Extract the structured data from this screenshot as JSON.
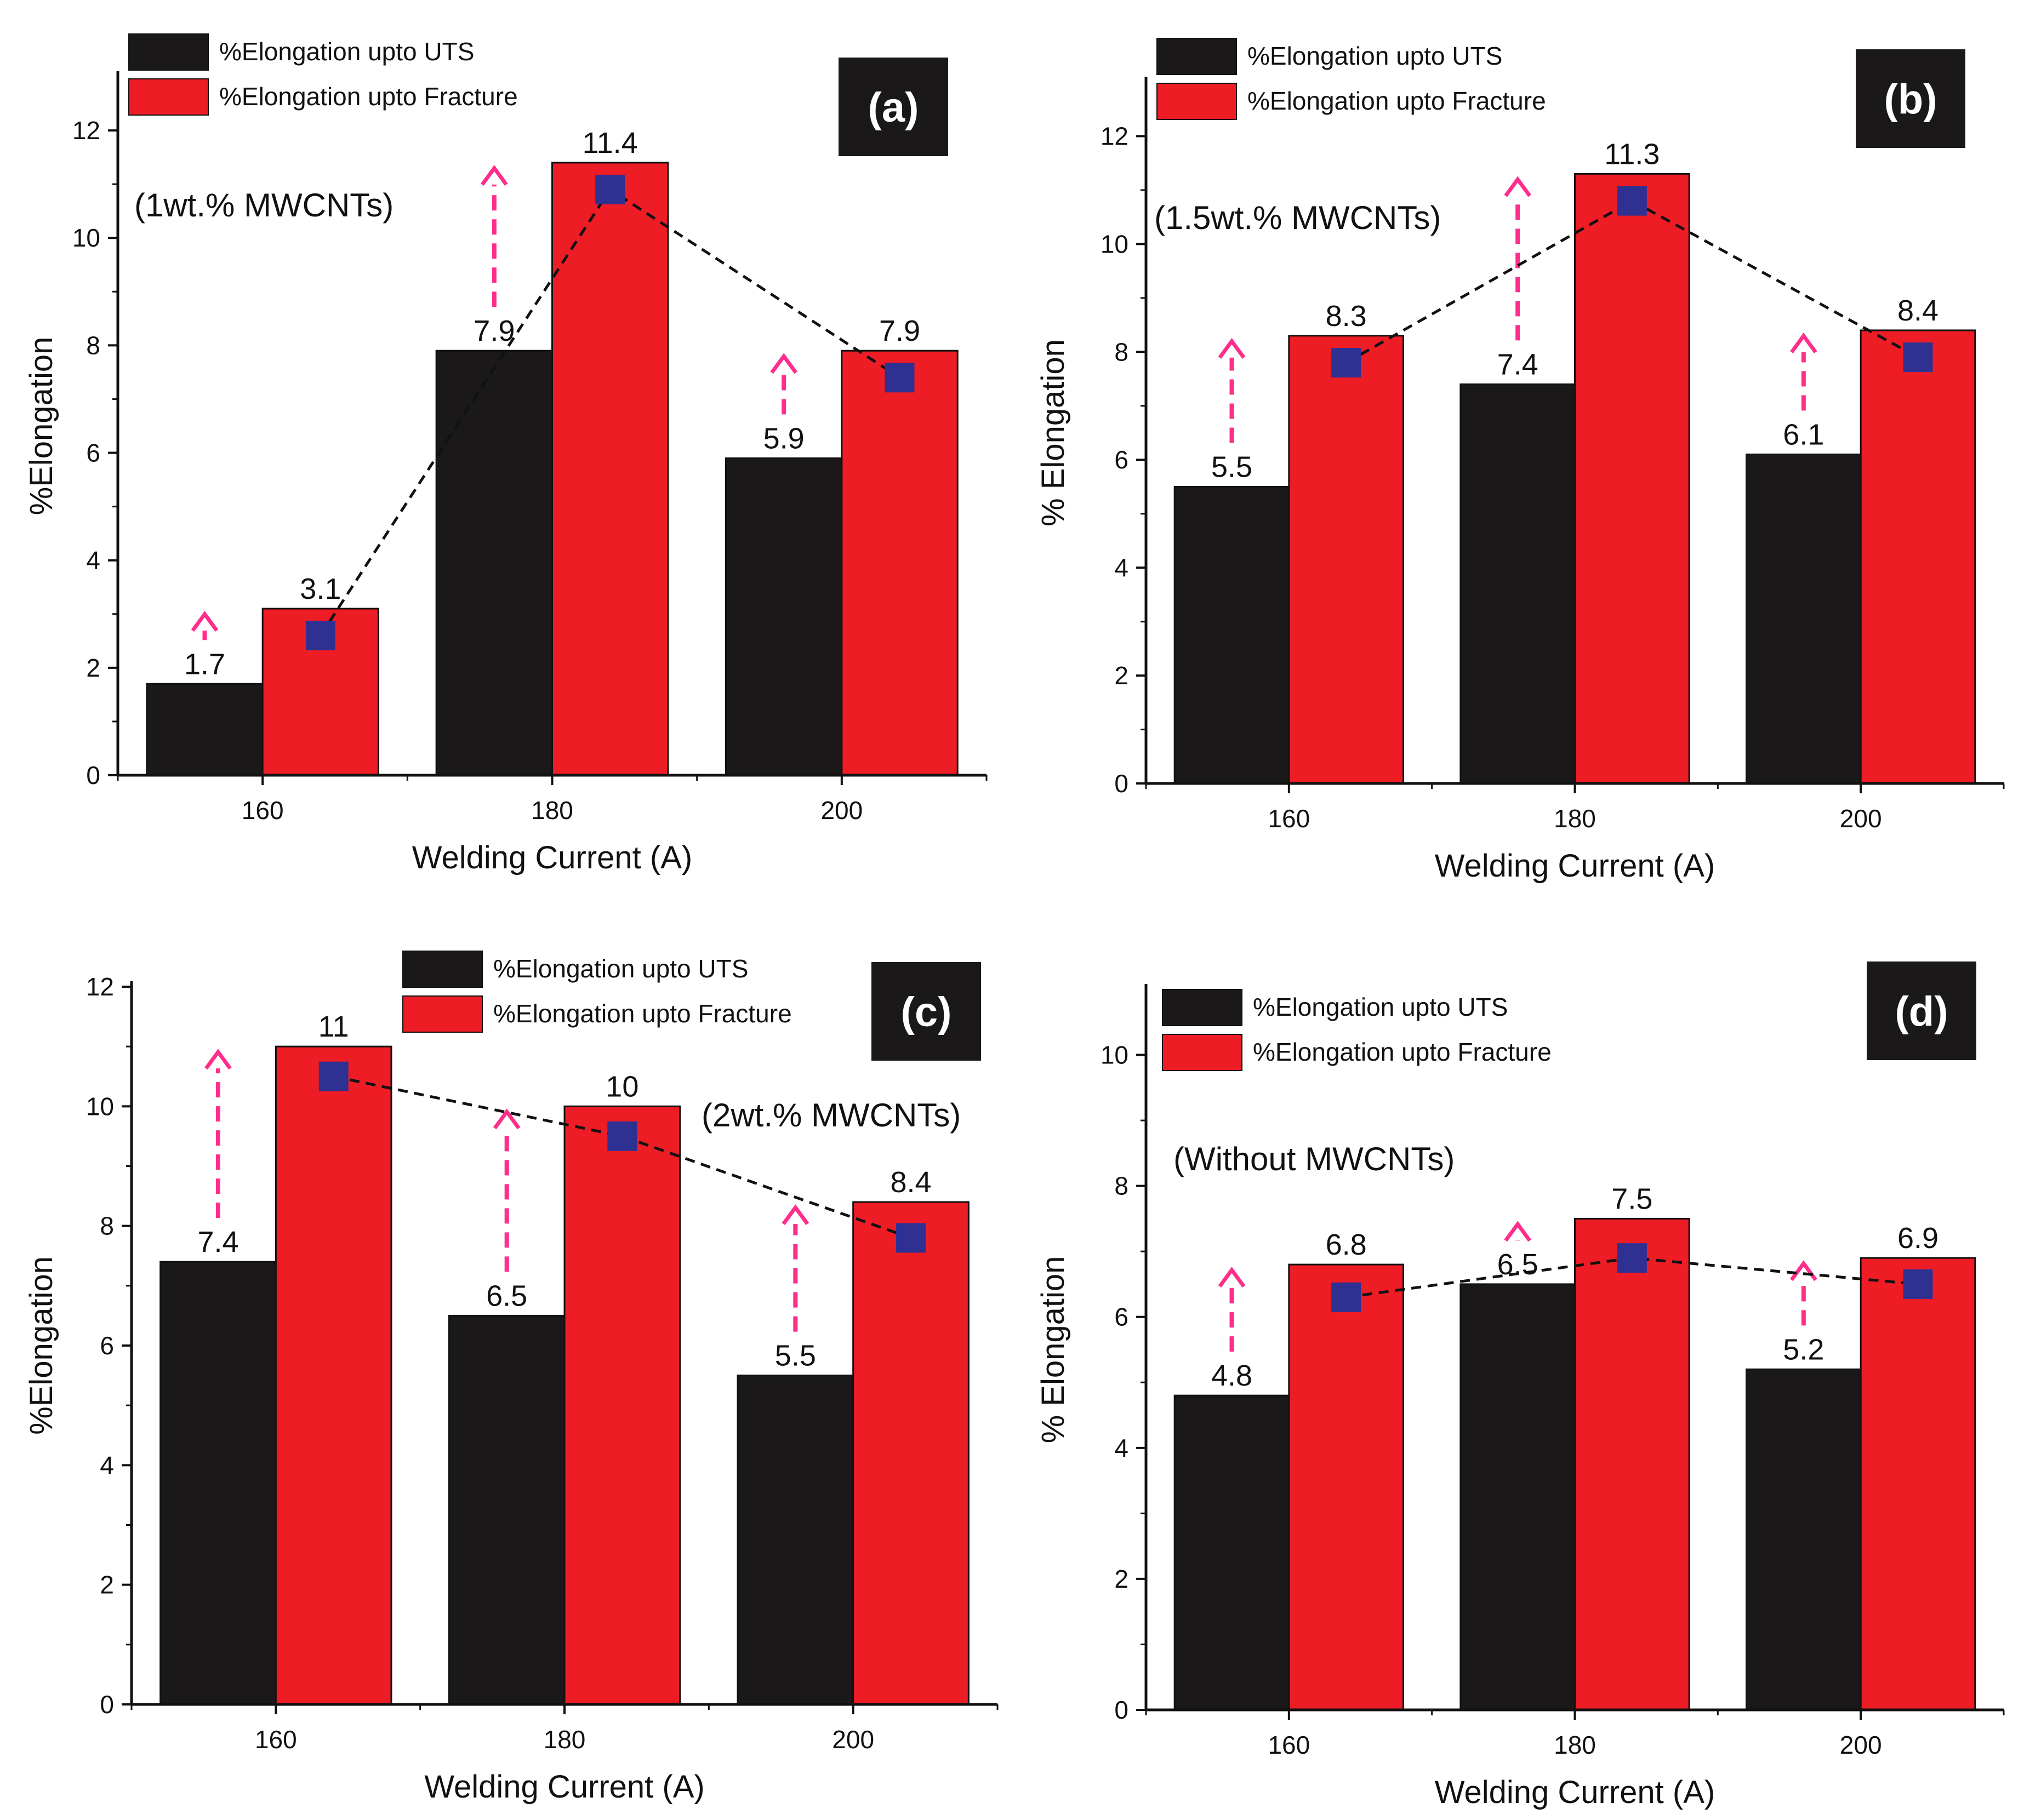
{
  "legend": {
    "uts_label": "%Elongation upto UTS",
    "fracture_label": "%Elongation upto Fracture"
  },
  "colors": {
    "uts_bar": "#1a1818",
    "fracture_bar": "#ee1c25",
    "marker": "#2e3192",
    "arrow": "#ff2e8a",
    "axis": "#111111"
  },
  "chart_data": [
    {
      "type": "bar",
      "panel_label": "(a)",
      "annotation": "(1wt.% MWCNTs)",
      "xlabel": "Welding Current (A)",
      "ylabel": "%Elongation",
      "categories": [
        "160",
        "180",
        "200"
      ],
      "ylim": [
        0,
        13
      ],
      "yticks": [
        0,
        2,
        4,
        6,
        8,
        10,
        12
      ],
      "series": [
        {
          "name": "%Elongation upto UTS",
          "values": [
            1.7,
            7.9,
            5.9
          ],
          "labels": [
            "1.7",
            "7.9",
            "5.9"
          ]
        },
        {
          "name": "%Elongation upto Fracture",
          "values": [
            3.1,
            11.4,
            7.9
          ],
          "labels": [
            "3.1",
            "11.4",
            "7.9"
          ]
        }
      ],
      "trend_markers": [
        2.6,
        10.9,
        7.4
      ]
    },
    {
      "type": "bar",
      "panel_label": "(b)",
      "annotation": "(1.5wt.% MWCNTs)",
      "xlabel": "Welding Current (A)",
      "ylabel": "% Elongation",
      "categories": [
        "160",
        "180",
        "200"
      ],
      "ylim": [
        0,
        13
      ],
      "yticks": [
        0,
        2,
        4,
        6,
        8,
        10,
        12
      ],
      "series": [
        {
          "name": "%Elongation upto UTS",
          "values": [
            5.5,
            7.4,
            6.1
          ],
          "labels": [
            "5.5",
            "7.4",
            "6.1"
          ]
        },
        {
          "name": "%Elongation upto Fracture",
          "values": [
            8.3,
            11.3,
            8.4
          ],
          "labels": [
            "8.3",
            "11.3",
            "8.4"
          ]
        }
      ],
      "trend_markers": [
        7.8,
        10.8,
        7.9
      ]
    },
    {
      "type": "bar",
      "panel_label": "(c)",
      "annotation": "(2wt.% MWCNTs)",
      "xlabel": "Welding Current (A)",
      "ylabel": "%Elongation",
      "categories": [
        "160",
        "180",
        "200"
      ],
      "ylim": [
        0,
        12
      ],
      "yticks": [
        0,
        2,
        4,
        6,
        8,
        10,
        12
      ],
      "series": [
        {
          "name": "%Elongation upto UTS",
          "values": [
            7.4,
            6.5,
            5.5
          ],
          "labels": [
            "7.4",
            "6.5",
            "5.5"
          ]
        },
        {
          "name": "%Elongation upto Fracture",
          "values": [
            11,
            10,
            8.4
          ],
          "labels": [
            "11",
            "10",
            "8.4"
          ]
        }
      ],
      "trend_markers": [
        10.5,
        9.5,
        7.8
      ]
    },
    {
      "type": "bar",
      "panel_label": "(d)",
      "annotation": "(Without MWCNTs)",
      "xlabel": "Welding Current (A)",
      "ylabel": "% Elongation",
      "categories": [
        "160",
        "180",
        "200"
      ],
      "ylim": [
        0,
        11
      ],
      "yticks": [
        0,
        2,
        4,
        6,
        8,
        10
      ],
      "series": [
        {
          "name": "%Elongation upto UTS",
          "values": [
            4.8,
            6.5,
            5.2
          ],
          "labels": [
            "4.8",
            "6.5",
            "5.2"
          ]
        },
        {
          "name": "%Elongation upto Fracture",
          "values": [
            6.8,
            7.5,
            6.9
          ],
          "labels": [
            "6.8",
            "7.5",
            "6.9"
          ]
        }
      ],
      "trend_markers": [
        6.3,
        6.9,
        6.5
      ]
    }
  ]
}
